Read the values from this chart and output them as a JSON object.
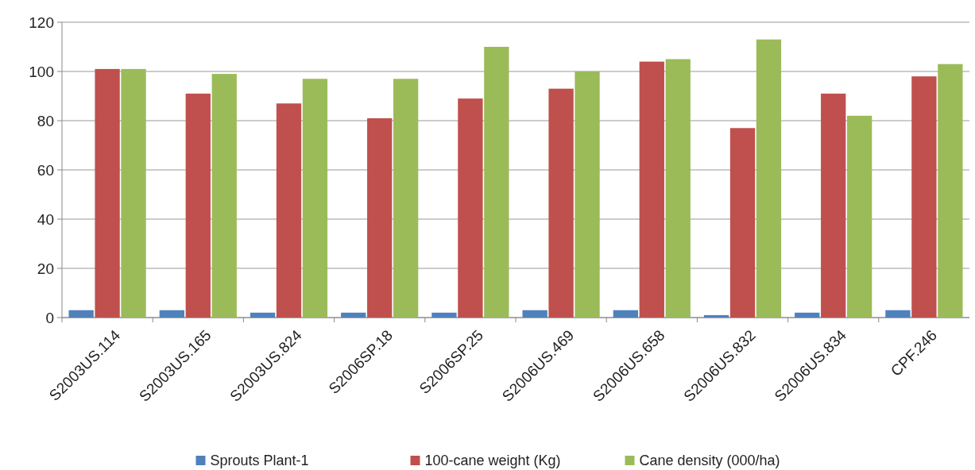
{
  "chart_data": {
    "type": "bar",
    "categories": [
      "S2003US.114",
      "S2003US.165",
      "S2003US.824",
      "S2006SP.18",
      "S2006SP.25",
      "S2006US.469",
      "S2006US.658",
      "S2006US.832",
      "S2006US.834",
      "CPF.246"
    ],
    "series": [
      {
        "name": "Sprouts Plant-1",
        "color": "#4f81bd",
        "values": [
          3,
          3,
          2,
          2,
          2,
          3,
          3,
          1,
          2,
          3
        ]
      },
      {
        "name": "100-cane weight (Kg)",
        "color": "#c0504d",
        "values": [
          101,
          91,
          87,
          81,
          89,
          93,
          104,
          77,
          91,
          98
        ]
      },
      {
        "name": "Cane density (000/ha)",
        "color": "#9bbb59",
        "values": [
          101,
          99,
          97,
          97,
          110,
          100,
          105,
          113,
          82,
          103
        ]
      }
    ],
    "ylim": [
      0,
      120
    ],
    "yticks": [
      0,
      20,
      40,
      60,
      80,
      100,
      120
    ],
    "grid": "y",
    "legend": "bottom"
  }
}
